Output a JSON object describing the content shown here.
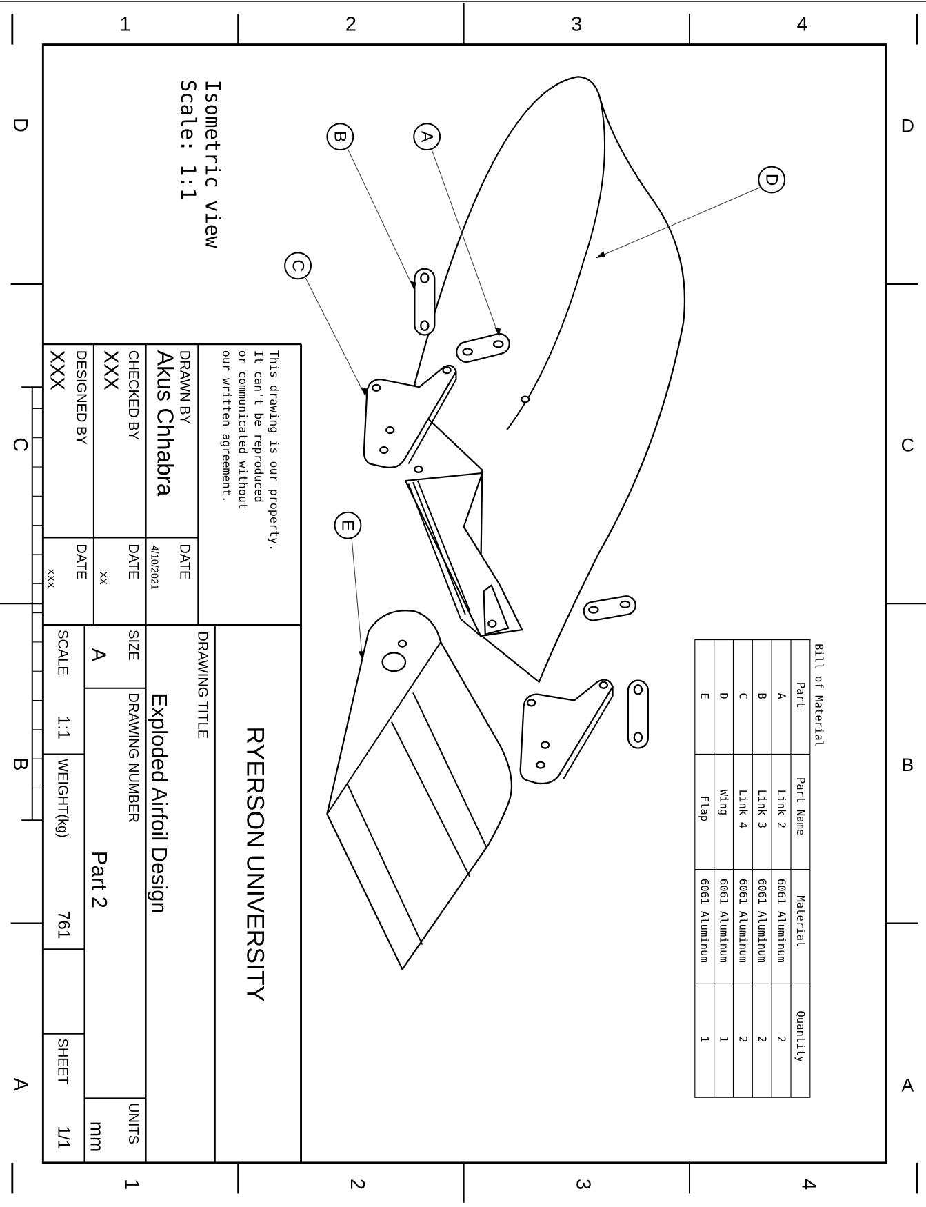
{
  "grid": {
    "columns": [
      "1",
      "2",
      "3",
      "4"
    ],
    "rows_left": [
      "D",
      "C",
      "B",
      "A"
    ],
    "rows_right": [
      "D",
      "C",
      "B",
      "A"
    ]
  },
  "view": {
    "title": "Isometric view",
    "scale": "Scale:  1:1"
  },
  "balloons": [
    "A",
    "B",
    "C",
    "D",
    "E"
  ],
  "bom": {
    "title": "Bill of Material",
    "headers": [
      "Part",
      "Part Name",
      "Material",
      "Quantity"
    ],
    "rows": [
      [
        "A",
        "Link 2",
        "6061 Aluminum",
        "2"
      ],
      [
        "B",
        "Link 3",
        "6061 Aluminum",
        "2"
      ],
      [
        "C",
        "Link 4",
        "6061 Aluminum",
        "2"
      ],
      [
        "D",
        "Wing",
        "6061 Aluminum",
        "1"
      ],
      [
        "E",
        "Flap",
        "6061 Aluminum",
        "1"
      ]
    ]
  },
  "title_block": {
    "property_notice": [
      "This drawing is our property.",
      "It can't be reproduced",
      "or communicated without",
      "our written agreement."
    ],
    "drawn_by_label": "DRAWN BY",
    "drawn_by": "Akus Chhabra",
    "drawn_date_label": "DATE",
    "drawn_date": "4/10/2021",
    "checked_by_label": "CHECKED BY",
    "checked_by": "XXX",
    "checked_date_label": "DATE",
    "checked_date": "XX",
    "designed_by_label": "DESIGNED BY",
    "designed_by": "XXX",
    "designed_date_label": "DATE",
    "designed_date": "XXX",
    "company": "RYERSON UNIVERSITY",
    "drawing_title_label": "DRAWING TITLE",
    "drawing_title": "Exploded Airfoil Design",
    "size_label": "SIZE",
    "size": "A",
    "drawing_number_label": "DRAWING NUMBER",
    "drawing_number": "Part 2",
    "units_label": "UNITS",
    "units": "mm",
    "scale_label": "SCALE",
    "scale": "1:1",
    "weight_label": "WEIGHT(kg)",
    "weight": "761",
    "sheet_label": "SHEET",
    "sheet": "1/1"
  }
}
